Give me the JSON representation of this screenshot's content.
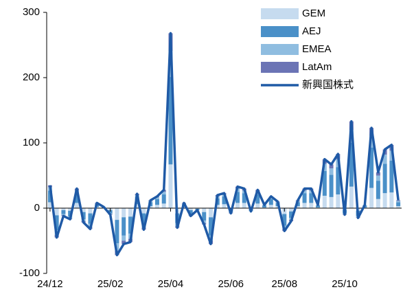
{
  "chart_data": {
    "type": "bar_line",
    "categories": [
      "24/12",
      null,
      null,
      null,
      null,
      null,
      null,
      null,
      null,
      "25/02",
      null,
      null,
      null,
      null,
      null,
      null,
      null,
      null,
      "25/04",
      null,
      null,
      null,
      null,
      null,
      null,
      null,
      null,
      "25/06",
      null,
      null,
      null,
      null,
      null,
      null,
      null,
      "25/08",
      null,
      null,
      null,
      null,
      null,
      null,
      null,
      null,
      "25/10",
      null,
      null,
      null,
      null,
      null,
      null,
      null,
      null
    ],
    "series": [
      {
        "name": "GEM",
        "color": "#c6dbef",
        "values": [
          9,
          -11,
          -3,
          -4,
          8,
          -6,
          -8,
          2,
          1,
          -3,
          -18,
          -14,
          -13,
          6,
          -8,
          3,
          5,
          7,
          67,
          -8,
          2,
          -3,
          -1,
          -6,
          -14,
          5,
          6,
          -2,
          8,
          8,
          -1,
          7,
          1,
          5,
          3,
          -9,
          -5,
          3,
          8,
          8,
          1,
          19,
          17,
          21,
          -3,
          33,
          -4,
          1,
          31,
          14,
          23,
          24,
          3
        ]
      },
      {
        "name": "AEJ",
        "color": "#4a90c8",
        "values": [
          18,
          -23,
          -6,
          -9,
          15,
          -11,
          -16,
          4,
          1,
          -5,
          -36,
          -28,
          -26,
          11,
          -17,
          6,
          9,
          14,
          134,
          -15,
          4,
          -6,
          -2,
          -13,
          -28,
          10,
          12,
          -4,
          17,
          15,
          -3,
          14,
          3,
          9,
          5,
          -18,
          -10,
          6,
          15,
          15,
          3,
          38,
          34,
          42,
          -5,
          67,
          -8,
          3,
          62,
          28,
          45,
          49,
          6
        ]
      },
      {
        "name": "EMEA",
        "color": "#8fbde0",
        "values": [
          5,
          -7,
          -2,
          -3,
          4,
          -3,
          -5,
          1,
          0,
          -1,
          -11,
          -8,
          -8,
          3,
          -5,
          2,
          3,
          4,
          40,
          -5,
          1,
          -2,
          0,
          -4,
          -8,
          3,
          3,
          -1,
          5,
          4,
          -1,
          4,
          1,
          3,
          1,
          -5,
          -3,
          2,
          4,
          4,
          1,
          11,
          10,
          12,
          -1,
          20,
          -2,
          1,
          18,
          8,
          14,
          15,
          2
        ]
      },
      {
        "name": "LatAm",
        "color": "#6b74b5",
        "values": [
          3,
          -4,
          -1,
          -1,
          3,
          -2,
          -3,
          1,
          0,
          -1,
          -7,
          -5,
          -5,
          2,
          -3,
          1,
          1,
          3,
          27,
          -2,
          1,
          -1,
          0,
          -2,
          -5,
          2,
          2,
          -1,
          3,
          3,
          0,
          3,
          0,
          1,
          1,
          -3,
          -2,
          1,
          3,
          3,
          0,
          7,
          6,
          8,
          -1,
          13,
          -1,
          0,
          12,
          5,
          8,
          9,
          1
        ]
      }
    ],
    "line": {
      "name": "新興国株式",
      "color": "#1f5aa6",
      "values": [
        35,
        -45,
        -12,
        -17,
        30,
        -22,
        -32,
        8,
        2,
        -10,
        -72,
        -55,
        -52,
        22,
        -33,
        12,
        18,
        28,
        268,
        -30,
        8,
        -12,
        -3,
        -25,
        -55,
        20,
        23,
        -8,
        33,
        30,
        -5,
        28,
        5,
        18,
        10,
        -35,
        -20,
        12,
        30,
        30,
        5,
        75,
        67,
        83,
        -10,
        133,
        -15,
        5,
        123,
        55,
        90,
        97,
        12
      ]
    },
    "ylim": [
      -100,
      300
    ],
    "yticks": [
      -100,
      0,
      100,
      200,
      300
    ],
    "legend": "upper right"
  }
}
